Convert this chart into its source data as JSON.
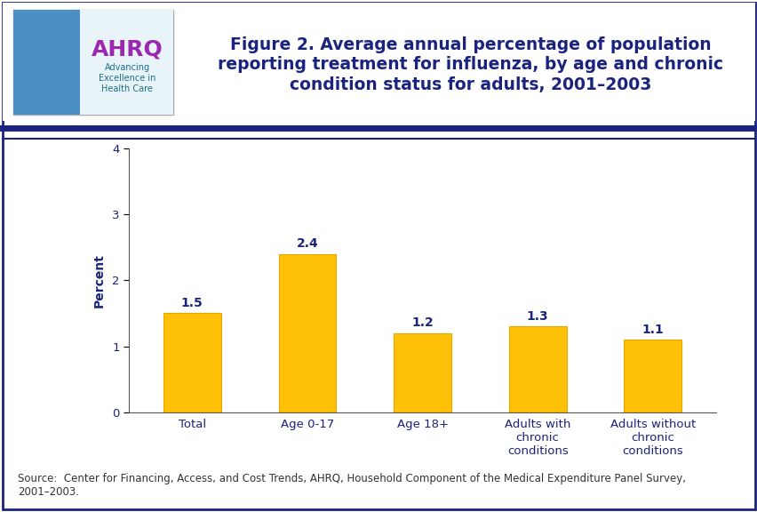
{
  "categories": [
    "Total",
    "Age 0-17",
    "Age 18+",
    "Adults with\nchronic\nconditions",
    "Adults without\nchronic\nconditions"
  ],
  "values": [
    1.5,
    2.4,
    1.2,
    1.3,
    1.1
  ],
  "bar_color": "#FFC107",
  "bar_edgecolor": "#E6A800",
  "ylabel": "Percent",
  "ylim": [
    0,
    4
  ],
  "yticks": [
    0,
    1,
    2,
    3,
    4
  ],
  "title_line1": "Figure 2. Average annual percentage of population",
  "title_line2": "reporting treatment for influenza, by age and chronic",
  "title_line3": "condition status for adults, 2001–2003",
  "title_color": "#1A237E",
  "title_fontsize": 13.5,
  "axis_label_color": "#1A237E",
  "tick_label_color": "#1A237E",
  "source_text": "Source:  Center for Financing, Access, and Cost Trends, AHRQ, Household Component of the Medical Expenditure Panel Survey,\n2001–2003.",
  "source_fontsize": 8.5,
  "source_color": "#333333",
  "header_sep_color": "#1A237E",
  "outer_border_color": "#1A237E",
  "value_label_color": "#1A237E",
  "value_label_fontsize": 10,
  "ylabel_fontsize": 10,
  "tick_fontsize": 9.5,
  "bg_color": "#FFFFFF"
}
